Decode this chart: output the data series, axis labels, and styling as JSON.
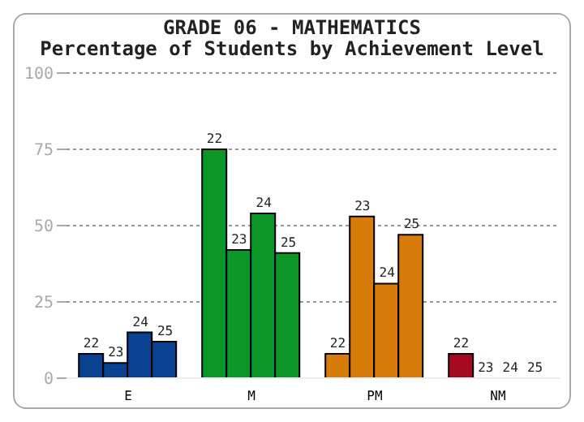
{
  "chart_data": {
    "type": "bar",
    "title": "GRADE 06 - MATHEMATICS",
    "subtitle": "Percentage of Students by Achievement Level",
    "categories": [
      "E",
      "M",
      "PM",
      "NM"
    ],
    "series": [
      {
        "name": "22",
        "colors": [
          "#0b4191",
          "#0b9627",
          "#d77b0a",
          "#a30a22"
        ],
        "values": [
          8,
          75,
          8,
          8
        ]
      },
      {
        "name": "23",
        "colors": [
          "#0b4191",
          "#0b9627",
          "#d77b0a",
          "#a30a22"
        ],
        "values": [
          5,
          42,
          53,
          0
        ]
      },
      {
        "name": "24",
        "colors": [
          "#0b4191",
          "#0b9627",
          "#d77b0a",
          "#a30a22"
        ],
        "values": [
          15,
          54,
          31,
          0
        ]
      },
      {
        "name": "25",
        "colors": [
          "#0b4191",
          "#0b9627",
          "#d77b0a",
          "#a30a22"
        ],
        "values": [
          12,
          41,
          47,
          0
        ]
      }
    ],
    "ylim": [
      0,
      100
    ],
    "yticks": [
      0,
      25,
      50,
      75,
      100
    ],
    "grid": "y",
    "legend": false
  }
}
